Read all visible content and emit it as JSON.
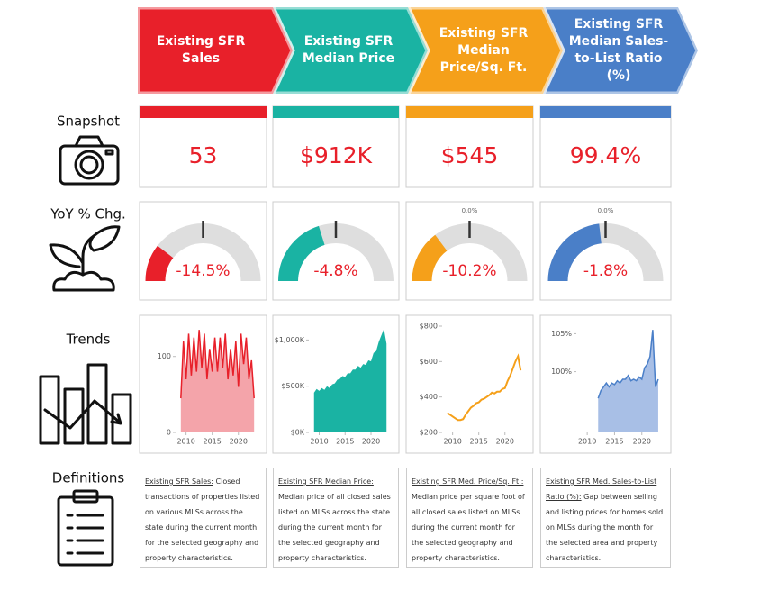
{
  "columns": [
    {
      "header": "Existing SFR Sales",
      "color": "#e8202a"
    },
    {
      "header": "Existing SFR Median Price",
      "color": "#1ab3a3"
    },
    {
      "header": "Existing SFR Median Price/Sq. Ft.",
      "color": "#f5a01a"
    },
    {
      "header": "Existing SFR Median Sales-to-List Ratio (%)",
      "color": "#4a7fc8"
    }
  ],
  "row_labels": [
    "Snapshot",
    "YoY % Chg.",
    "Trends",
    "Definitions"
  ],
  "snapshot": [
    "53",
    "$912K",
    "$545",
    "99.4%"
  ],
  "chart_data": [
    {
      "type": "gauge",
      "values": [
        -14.5
      ],
      "value_labels": [
        "-14.5%"
      ],
      "ylim": [
        -25,
        25
      ],
      "color": "#e8202a"
    },
    {
      "type": "gauge",
      "values": [
        -4.8
      ],
      "value_labels": [
        "-4.8%"
      ],
      "ylim": [
        -25,
        25
      ],
      "color": "#1ab3a3"
    },
    {
      "type": "gauge",
      "values": [
        -10.2
      ],
      "value_labels": [
        "-10.2%"
      ],
      "ylim": [
        -25,
        25
      ],
      "color": "#f5a01a",
      "yticks": [
        {
          "value": 0,
          "label": "0.0%"
        }
      ]
    },
    {
      "type": "gauge",
      "values": [
        -1.8
      ],
      "value_labels": [
        "-1.8%"
      ],
      "ylim": [
        -25,
        25
      ],
      "color": "#4a7fc8",
      "yticks": [
        {
          "value": 0,
          "label": "0.0%"
        }
      ]
    },
    {
      "type": "area",
      "color": "#f4a4aa",
      "line_color": "#e8202a",
      "x": [
        2009,
        2009.5,
        2010,
        2010.5,
        2011,
        2011.5,
        2012,
        2012.5,
        2013,
        2013.5,
        2014,
        2014.5,
        2015,
        2015.5,
        2016,
        2016.5,
        2017,
        2017.5,
        2018,
        2018.5,
        2019,
        2019.5,
        2020,
        2020.5,
        2021,
        2021.5,
        2022,
        2022.5,
        2023
      ],
      "values": [
        45,
        120,
        70,
        130,
        75,
        125,
        80,
        135,
        85,
        130,
        70,
        110,
        80,
        125,
        80,
        125,
        85,
        130,
        70,
        110,
        75,
        120,
        60,
        130,
        90,
        125,
        70,
        95,
        45
      ],
      "xlim": [
        2008,
        2024
      ],
      "xticks": [
        2010,
        2015,
        2020
      ],
      "ylim": [
        0,
        140
      ],
      "yticks": [
        0,
        100
      ]
    },
    {
      "type": "area",
      "color": "#1ab3a3",
      "x": [
        2009,
        2009.5,
        2010,
        2010.5,
        2011,
        2011.5,
        2012,
        2012.5,
        2013,
        2013.5,
        2014,
        2014.5,
        2015,
        2015.5,
        2016,
        2016.5,
        2017,
        2017.5,
        2018,
        2018.5,
        2019,
        2019.5,
        2020,
        2020.5,
        2021,
        2021.5,
        2022,
        2022.5,
        2023
      ],
      "values": [
        430,
        470,
        450,
        480,
        460,
        500,
        480,
        520,
        530,
        570,
        580,
        610,
        600,
        640,
        640,
        680,
        680,
        720,
        700,
        740,
        730,
        780,
        770,
        860,
        880,
        980,
        1050,
        1120,
        960
      ],
      "xlim": [
        2008,
        2024
      ],
      "xticks": [
        2010,
        2015,
        2020
      ],
      "ylim": [
        0,
        1150
      ],
      "yticks": [
        {
          "value": 0,
          "label": "$0K"
        },
        {
          "value": 500,
          "label": "$500K"
        },
        {
          "value": 1000,
          "label": "$1,000K"
        }
      ]
    },
    {
      "type": "line",
      "color": "#f5a01a",
      "x": [
        2009,
        2009.5,
        2010,
        2010.5,
        2011,
        2011.5,
        2012,
        2012.5,
        2013,
        2013.5,
        2014,
        2014.5,
        2015,
        2015.5,
        2016,
        2016.5,
        2017,
        2017.5,
        2018,
        2018.5,
        2019,
        2019.5,
        2020,
        2020.5,
        2021,
        2021.5,
        2022,
        2022.5,
        2023
      ],
      "values": [
        310,
        300,
        290,
        280,
        270,
        270,
        275,
        300,
        320,
        340,
        350,
        365,
        370,
        385,
        390,
        400,
        410,
        425,
        420,
        430,
        430,
        445,
        450,
        490,
        520,
        560,
        600,
        630,
        550
      ],
      "xlim": [
        2008,
        2024
      ],
      "xticks": [
        2010,
        2015,
        2020
      ],
      "ylim": [
        200,
        800
      ],
      "yticks": [
        {
          "value": 200,
          "label": "$200"
        },
        {
          "value": 400,
          "label": "$400"
        },
        {
          "value": 600,
          "label": "$600"
        },
        {
          "value": 800,
          "label": "$800"
        }
      ]
    },
    {
      "type": "area",
      "color": "#a8bfe6",
      "line_color": "#4a7fc8",
      "x": [
        2009,
        2009.5,
        2010,
        2010.5,
        2011,
        2011.5,
        2012,
        2012.5,
        2013,
        2013.5,
        2014,
        2014.5,
        2015,
        2015.5,
        2016,
        2016.5,
        2017,
        2017.5,
        2018,
        2018.5,
        2019,
        2019.5,
        2020,
        2020.5,
        2021,
        2021.5,
        2022,
        2022.5,
        2023
      ],
      "values": [
        null,
        null,
        null,
        null,
        null,
        null,
        96.5,
        97.5,
        98,
        98.5,
        98,
        98.5,
        98.3,
        98.8,
        98.5,
        99,
        99,
        99.5,
        98.8,
        99,
        98.8,
        99.3,
        99,
        100.5,
        101,
        102,
        105.5,
        98,
        99
      ],
      "xlim": [
        2008,
        2024
      ],
      "xticks": [
        2010,
        2015,
        2020
      ],
      "ylim": [
        92,
        106
      ],
      "yticks": [
        {
          "value": 100,
          "label": "100%"
        },
        {
          "value": 105,
          "label": "105%"
        }
      ]
    }
  ],
  "definitions": [
    {
      "term": "Existing SFR Sales:",
      "text": "Closed transactions of properties listed on various MLSs across the state during the current month for the selected geography and property characteristics."
    },
    {
      "term": "Existing SFR Median Price:",
      "text": "Median price of all closed sales listed on MLSs across the state during the current month for the selected geography and property characteristics."
    },
    {
      "term": "Existing SFR Med. Price/Sq. Ft.:",
      "text": "Median price per square foot of all closed sales listed on MLSs during the current month for the selected geography and property characteristics."
    },
    {
      "term": "Existing SFR Med. Sales-to-List Ratio (%):",
      "text": "Gap between selling and listing prices for homes sold on MLSs during the month for the selected area and property characteristics."
    }
  ]
}
